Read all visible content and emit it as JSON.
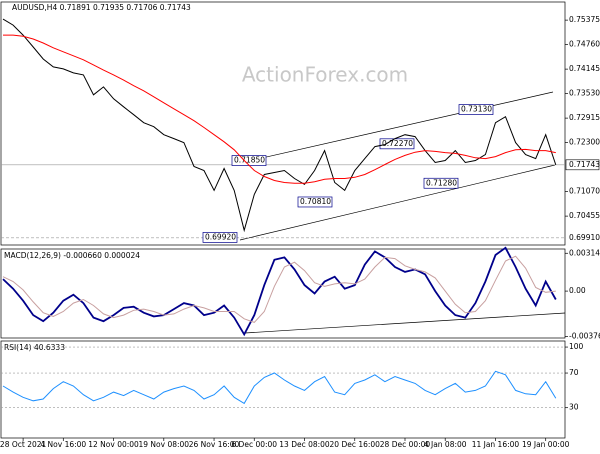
{
  "chart_data": [
    {
      "type": "line",
      "title": "AUDUSD,H4  0.71891 0.71935 0.71706 0.71743",
      "watermark": "ActionForex.com",
      "ylim": [
        0.6973,
        0.7583
      ],
      "yticks": [
        {
          "value": 0.75375,
          "label": "0.75375"
        },
        {
          "value": 0.7476,
          "label": "0.74760"
        },
        {
          "value": 0.74145,
          "label": "0.74145"
        },
        {
          "value": 0.7353,
          "label": "0.73530"
        },
        {
          "value": 0.72915,
          "label": "0.72915"
        },
        {
          "value": 0.723,
          "label": "0.72300"
        },
        {
          "value": 0.7107,
          "label": "0.71070"
        },
        {
          "value": 0.70455,
          "label": "0.70455"
        }
      ],
      "price_lines": [
        {
          "value": 0.71743,
          "label": "0.71743"
        },
        {
          "value": 0.6991,
          "label": "0.69910"
        }
      ],
      "annotations": [
        {
          "value": 0.6992,
          "label": "0.69920"
        },
        {
          "value": 0.7081,
          "label": "0.70810"
        },
        {
          "value": 0.7185,
          "label": "0.71850"
        },
        {
          "value": 0.7227,
          "label": "0.72270"
        },
        {
          "value": 0.7128,
          "label": "0.71280"
        },
        {
          "value": 0.7313,
          "label": "0.73130"
        }
      ],
      "series": [
        {
          "color": "#000000",
          "values": [
            0.754,
            0.7525,
            0.75,
            0.747,
            0.744,
            0.742,
            0.7415,
            0.7405,
            0.74,
            0.735,
            0.737,
            0.734,
            0.732,
            0.73,
            0.728,
            0.727,
            0.725,
            0.724,
            0.723,
            0.717,
            0.716,
            0.711,
            0.7165,
            0.711,
            0.701,
            0.71,
            0.715,
            0.7155,
            0.716,
            0.714,
            0.7125,
            0.716,
            0.721,
            0.713,
            0.711,
            0.716,
            0.719,
            0.722,
            0.7225,
            0.724,
            0.725,
            0.7245,
            0.721,
            0.718,
            0.7185,
            0.721,
            0.718,
            0.7185,
            0.72,
            0.728,
            0.7295,
            0.723,
            0.72,
            0.719,
            0.725,
            0.7174
          ]
        },
        {
          "color": "#ff0000",
          "values": [
            0.75,
            0.75,
            0.7497,
            0.749,
            0.748,
            0.7468,
            0.7458,
            0.7448,
            0.7438,
            0.7425,
            0.7412,
            0.74,
            0.7387,
            0.7373,
            0.736,
            0.7345,
            0.733,
            0.7315,
            0.73,
            0.7285,
            0.7268,
            0.725,
            0.7232,
            0.7212,
            0.7185,
            0.716,
            0.7145,
            0.7135,
            0.713,
            0.7128,
            0.7128,
            0.7132,
            0.7138,
            0.714,
            0.714,
            0.7143,
            0.715,
            0.7162,
            0.7175,
            0.7188,
            0.7198,
            0.7206,
            0.721,
            0.7208,
            0.7205,
            0.7203,
            0.7198,
            0.7192,
            0.719,
            0.7195,
            0.7205,
            0.7212,
            0.7213,
            0.721,
            0.721,
            0.7205
          ]
        }
      ]
    },
    {
      "type": "line",
      "title": "MACD(12,26,9) -0.000660 0.000024",
      "ylim": [
        -0.0039,
        0.0035
      ],
      "yticks": [
        0.003145,
        {
          "value": 0,
          "label": "0.00"
        },
        -0.003768
      ],
      "series": [
        {
          "color": "#00008b",
          "values": [
            0.001,
            0.0002,
            -0.0008,
            -0.002,
            -0.0025,
            -0.0018,
            -0.0008,
            -0.0003,
            -0.001,
            -0.0022,
            -0.0025,
            -0.002,
            -0.0014,
            -0.0013,
            -0.0018,
            -0.0021,
            -0.002,
            -0.0015,
            -0.001,
            -0.0012,
            -0.002,
            -0.0018,
            -0.0012,
            -0.0022,
            -0.0036,
            -0.002,
            0.0005,
            0.0026,
            0.0028,
            0.0018,
            0.0005,
            -0.0002,
            0.0008,
            0.0012,
            0.0002,
            0.0005,
            0.0022,
            0.0033,
            0.0028,
            0.002,
            0.0016,
            0.0018,
            0.0014,
            0,
            -0.0012,
            -0.002,
            -0.0022,
            -0.001,
            0.0008,
            0.003,
            0.0036,
            0.002,
            0.0002,
            -0.0012,
            0.0008,
            -0.0007
          ]
        },
        {
          "color": "#c8a0a0",
          "values": [
            0.0012,
            0.0008,
            0.0001,
            -0.0009,
            -0.0018,
            -0.0021,
            -0.0017,
            -0.001,
            -0.0007,
            -0.0012,
            -0.0019,
            -0.0022,
            -0.002,
            -0.0016,
            -0.0015,
            -0.0017,
            -0.002,
            -0.0019,
            -0.0015,
            -0.0012,
            -0.0014,
            -0.0017,
            -0.0017,
            -0.0017,
            -0.0023,
            -0.0026,
            -0.0017,
            0.0004,
            0.002,
            0.0024,
            0.0017,
            0.0007,
            0.0004,
            0.0006,
            0.0007,
            0.0006,
            0.001,
            0.002,
            0.0028,
            0.0027,
            0.0021,
            0.0018,
            0.0016,
            0.0011,
            0,
            -0.0011,
            -0.0018,
            -0.0017,
            -0.0008,
            0.0009,
            0.0025,
            0.0029,
            0.0019,
            0.0003,
            -0.0001,
            0
          ]
        }
      ]
    },
    {
      "type": "line",
      "title": "RSI(14) 40.6333",
      "ylim": [
        -5,
        107
      ],
      "yticks": [
        100,
        70,
        30
      ],
      "categories": [
        null,
        null,
        "28 Oct 2021",
        null,
        null,
        null,
        "4 Nov 16:00",
        null,
        null,
        null,
        null,
        "12 Nov 00:00",
        null,
        null,
        null,
        null,
        "19 Nov 08:00",
        null,
        null,
        null,
        null,
        "26 Nov 16:00",
        null,
        null,
        null,
        "6 Dec 00:00",
        null,
        null,
        null,
        null,
        "13 Dec 08:00",
        null,
        null,
        null,
        null,
        "20 Dec 16:00",
        null,
        null,
        null,
        null,
        "28 Dec 00:00",
        null,
        null,
        null,
        "4 Jan 08:00",
        null,
        null,
        null,
        null,
        "11 Jan 16:00",
        null,
        null,
        null,
        null,
        "19 Jan 00:00",
        null
      ],
      "series": [
        {
          "color": "#1e90ff",
          "values": [
            55,
            48,
            42,
            38,
            40,
            52,
            60,
            55,
            45,
            38,
            42,
            48,
            44,
            50,
            45,
            40,
            48,
            52,
            55,
            50,
            40,
            45,
            55,
            42,
            35,
            55,
            65,
            70,
            62,
            55,
            50,
            60,
            66,
            48,
            45,
            58,
            62,
            68,
            60,
            66,
            62,
            58,
            50,
            45,
            52,
            58,
            48,
            50,
            55,
            72,
            68,
            50,
            46,
            45,
            60,
            41
          ]
        }
      ]
    }
  ]
}
